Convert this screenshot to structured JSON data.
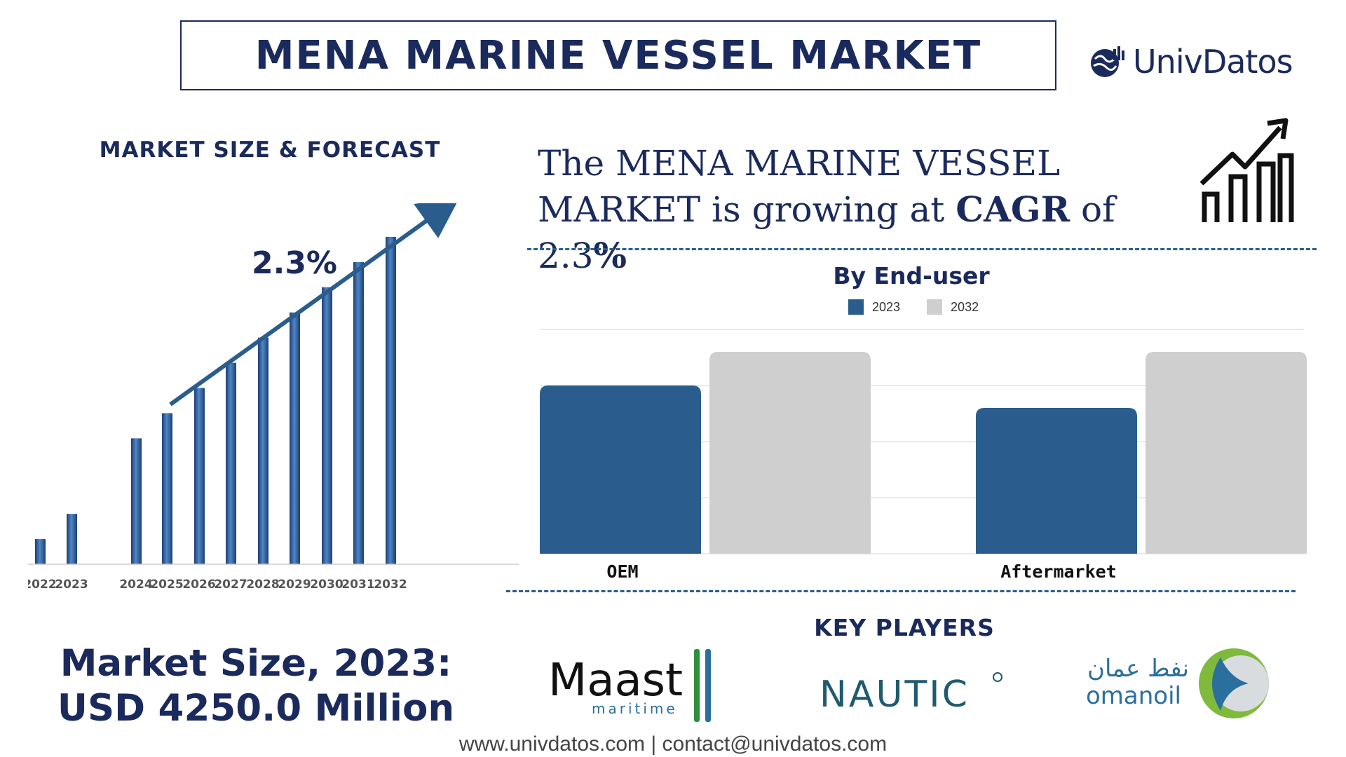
{
  "header": {
    "title": "MENA MARINE VESSEL MARKET",
    "logo_text": "UnivDatos"
  },
  "left_panel": {
    "subtitle": "MARKET SIZE & FORECAST",
    "cagr_annotation": "2.3%",
    "market_size_line1": "Market Size, 2023:",
    "market_size_line2": "USD 4250.0 Million"
  },
  "headline": {
    "part1": "The MENA MARINE VESSEL MARKET is growing at ",
    "cagr_word": "CAGR",
    "part2": " of 2.3",
    "percent": "%"
  },
  "end_user": {
    "title": "By End-user"
  },
  "key_players": {
    "title": "KEY PLAYERS",
    "players": [
      {
        "name": "Maast",
        "sub": "maritime"
      },
      {
        "name": "NAUTIC"
      },
      {
        "name": "omanoil",
        "arabic": "نفط عمان"
      }
    ]
  },
  "footer": {
    "contact": "www.univdatos.com | contact@univdatos.com"
  },
  "colors": {
    "navy": "#1b2a5c",
    "bar_blue": "#2a5d8d",
    "bar_gray": "#cfcfcf",
    "dash": "#2a5d8d"
  },
  "chart_data": [
    {
      "type": "bar",
      "title": "MARKET SIZE & FORECAST",
      "categories": [
        "2022",
        "2023",
        "2024",
        "2025",
        "2026",
        "2027",
        "2028",
        "2029",
        "2030",
        "2031",
        "2032"
      ],
      "values": [
        1.0,
        2.0,
        5.0,
        6.0,
        7.0,
        8.0,
        9.0,
        10.0,
        11.0,
        12.0,
        13.0
      ],
      "annotation": "2.3%",
      "ylim": [
        0,
        13.5
      ],
      "grid": false,
      "legend": "none"
    },
    {
      "type": "bar",
      "title": "By End-user",
      "categories": [
        "OEM",
        "Aftermarket"
      ],
      "series": [
        {
          "name": "2023",
          "values": [
            3.0,
            2.6
          ],
          "color": "#2a5d8d"
        },
        {
          "name": "2032",
          "values": [
            3.6,
            3.6
          ],
          "color": "#cfcfcf"
        }
      ],
      "ylim": [
        0,
        4
      ],
      "grid": true,
      "legend": "top-center"
    }
  ]
}
